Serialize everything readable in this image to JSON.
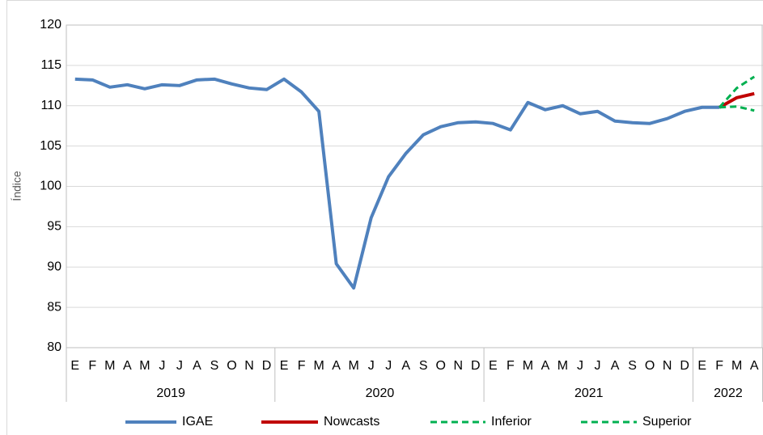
{
  "chart_data": {
    "type": "line",
    "y_label": "Índice",
    "categories": [
      "E",
      "F",
      "M",
      "A",
      "M",
      "J",
      "J",
      "A",
      "S",
      "O",
      "N",
      "D",
      "E",
      "F",
      "M",
      "A",
      "M",
      "J",
      "J",
      "A",
      "S",
      "O",
      "N",
      "D",
      "E",
      "F",
      "M",
      "A",
      "M",
      "J",
      "J",
      "A",
      "S",
      "O",
      "N",
      "D",
      "E",
      "F",
      "M",
      "A"
    ],
    "groups": [
      "2019",
      "2020",
      "2021",
      "2022"
    ],
    "group_sizes": [
      12,
      12,
      12,
      4
    ],
    "series": [
      {
        "name": "IGAE",
        "color": "#4f81bd",
        "style": "solid",
        "values": [
          113.3,
          113.2,
          112.3,
          112.6,
          112.1,
          112.6,
          112.5,
          113.2,
          113.3,
          112.7,
          112.2,
          112.0,
          113.3,
          111.7,
          109.3,
          90.4,
          87.4,
          96.1,
          101.2,
          104.1,
          106.4,
          107.4,
          107.9,
          108.0,
          107.8,
          107.0,
          110.4,
          109.5,
          110.0,
          109.0,
          109.3,
          108.1,
          107.9,
          107.8,
          108.4,
          109.3,
          109.8,
          109.8,
          null,
          null
        ]
      },
      {
        "name": "Nowcasts",
        "color": "#c00000",
        "style": "solid",
        "values": [
          null,
          null,
          null,
          null,
          null,
          null,
          null,
          null,
          null,
          null,
          null,
          null,
          null,
          null,
          null,
          null,
          null,
          null,
          null,
          null,
          null,
          null,
          null,
          null,
          null,
          null,
          null,
          null,
          null,
          null,
          null,
          null,
          null,
          null,
          null,
          null,
          null,
          109.8,
          111.0,
          111.5
        ]
      },
      {
        "name": "Inferior",
        "color": "#00b050",
        "style": "dashed",
        "values": [
          null,
          null,
          null,
          null,
          null,
          null,
          null,
          null,
          null,
          null,
          null,
          null,
          null,
          null,
          null,
          null,
          null,
          null,
          null,
          null,
          null,
          null,
          null,
          null,
          null,
          null,
          null,
          null,
          null,
          null,
          null,
          null,
          null,
          null,
          null,
          null,
          null,
          109.8,
          109.9,
          109.4
        ]
      },
      {
        "name": "Superior",
        "color": "#00b050",
        "style": "dashed",
        "values": [
          null,
          null,
          null,
          null,
          null,
          null,
          null,
          null,
          null,
          null,
          null,
          null,
          null,
          null,
          null,
          null,
          null,
          null,
          null,
          null,
          null,
          null,
          null,
          null,
          null,
          null,
          null,
          null,
          null,
          null,
          null,
          null,
          null,
          null,
          null,
          null,
          null,
          109.8,
          112.2,
          113.6
        ]
      }
    ],
    "ylim": [
      80,
      120
    ],
    "yticks": [
      80,
      85,
      90,
      95,
      100,
      105,
      110,
      115,
      120
    ],
    "grid": true,
    "legend": "bottom"
  }
}
